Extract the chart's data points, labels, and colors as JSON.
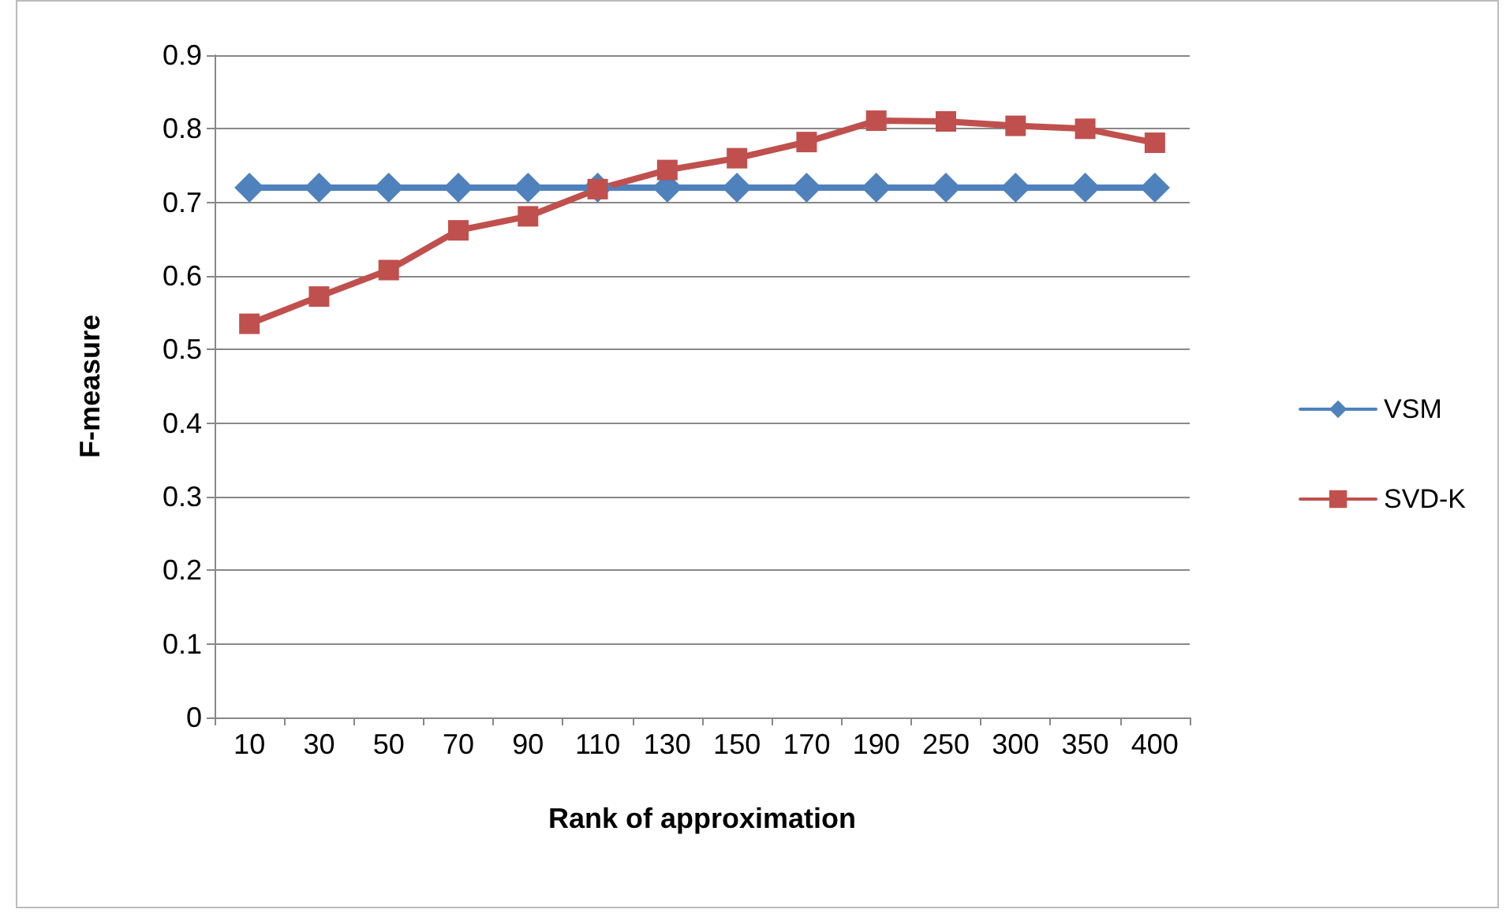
{
  "chart_data": {
    "type": "line",
    "xlabel": "Rank of approximation",
    "ylabel": "F-measure",
    "categories": [
      "10",
      "30",
      "50",
      "70",
      "90",
      "110",
      "130",
      "150",
      "170",
      "190",
      "250",
      "300",
      "350",
      "400"
    ],
    "series": [
      {
        "name": "VSM",
        "color": "#4f81bd",
        "marker": "diamond",
        "values": [
          0.72,
          0.72,
          0.72,
          0.72,
          0.72,
          0.72,
          0.72,
          0.72,
          0.72,
          0.72,
          0.72,
          0.72,
          0.72,
          0.72
        ]
      },
      {
        "name": "SVD-K",
        "color": "#c0504d",
        "marker": "square",
        "values": [
          0.535,
          0.572,
          0.608,
          0.662,
          0.681,
          0.718,
          0.744,
          0.76,
          0.782,
          0.811,
          0.81,
          0.804,
          0.8,
          0.781
        ]
      }
    ],
    "ylim": [
      0,
      0.9
    ],
    "yticks": [
      0,
      0.1,
      0.2,
      0.3,
      0.4,
      0.5,
      0.6,
      0.7,
      0.8,
      0.9
    ],
    "grid": "y",
    "legend": "right",
    "line_style": "solid"
  }
}
